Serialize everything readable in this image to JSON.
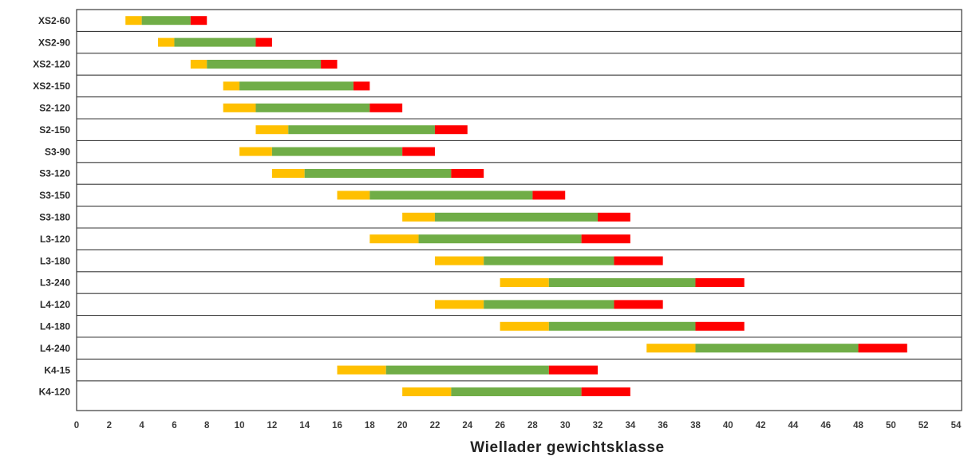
{
  "chart_data": {
    "type": "bar",
    "orientation": "horizontal",
    "stacked": true,
    "title": "",
    "xlabel": "Wiellader gewichtsklasse",
    "ylabel": "",
    "xlim": [
      0,
      54
    ],
    "xticks": [
      0,
      2,
      4,
      6,
      8,
      10,
      12,
      14,
      16,
      18,
      20,
      22,
      24,
      26,
      28,
      30,
      32,
      34,
      36,
      38,
      40,
      42,
      44,
      46,
      48,
      50,
      52,
      54
    ],
    "grid": "horizontal row separators",
    "legend": "none",
    "colors": {
      "segment_yellow": "#ffc000",
      "segment_green": "#70ad47",
      "segment_red": "#ff0000"
    },
    "categories": [
      "XS2-60",
      "XS2-90",
      "XS2-120",
      "XS2-150",
      "S2-120",
      "S2-150",
      "S3-90",
      "S3-120",
      "S3-150",
      "S3-180",
      "L3-120",
      "L3-180",
      "L3-240",
      "L4-120",
      "L4-180",
      "L4-240",
      "K4-15",
      "K4-120"
    ],
    "ranges": [
      {
        "start": 3,
        "yellow_end": 4,
        "green_end": 7,
        "end": 8
      },
      {
        "start": 5,
        "yellow_end": 6,
        "green_end": 11,
        "end": 12
      },
      {
        "start": 7,
        "yellow_end": 8,
        "green_end": 15,
        "end": 16
      },
      {
        "start": 9,
        "yellow_end": 10,
        "green_end": 17,
        "end": 18
      },
      {
        "start": 9,
        "yellow_end": 11,
        "green_end": 18,
        "end": 20
      },
      {
        "start": 11,
        "yellow_end": 13,
        "green_end": 22,
        "end": 24
      },
      {
        "start": 10,
        "yellow_end": 12,
        "green_end": 20,
        "end": 22
      },
      {
        "start": 12,
        "yellow_end": 14,
        "green_end": 23,
        "end": 25
      },
      {
        "start": 16,
        "yellow_end": 18,
        "green_end": 28,
        "end": 30
      },
      {
        "start": 20,
        "yellow_end": 22,
        "green_end": 32,
        "end": 34
      },
      {
        "start": 18,
        "yellow_end": 21,
        "green_end": 31,
        "end": 34
      },
      {
        "start": 22,
        "yellow_end": 25,
        "green_end": 33,
        "end": 36
      },
      {
        "start": 26,
        "yellow_end": 29,
        "green_end": 38,
        "end": 41
      },
      {
        "start": 22,
        "yellow_end": 25,
        "green_end": 33,
        "end": 36
      },
      {
        "start": 26,
        "yellow_end": 29,
        "green_end": 38,
        "end": 41
      },
      {
        "start": 35,
        "yellow_end": 38,
        "green_end": 48,
        "end": 51
      },
      {
        "start": 16,
        "yellow_end": 19,
        "green_end": 29,
        "end": 32
      },
      {
        "start": 20,
        "yellow_end": 23,
        "green_end": 31,
        "end": 34
      }
    ]
  }
}
